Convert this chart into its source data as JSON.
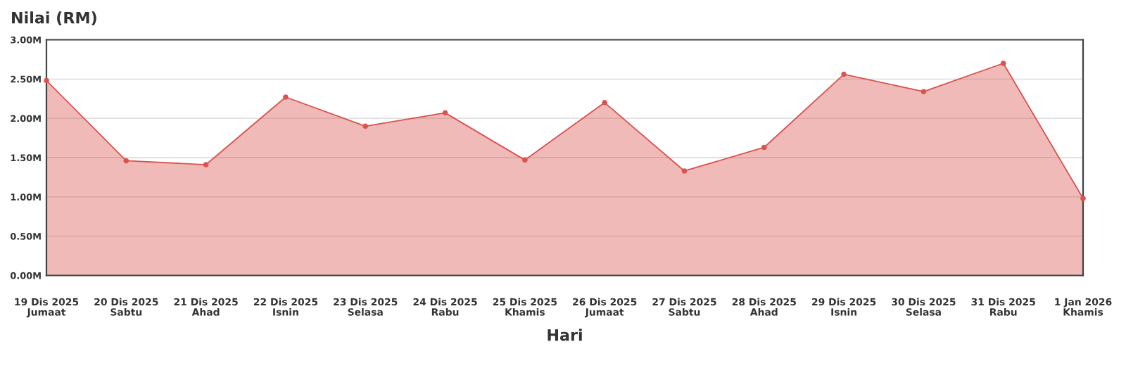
{
  "chart_data": {
    "type": "area",
    "ylabel": "Nilai (RM)",
    "xlabel": "Hari",
    "categories": [
      "19 Dis 2025\nJumaat",
      "20 Dis 2025\nSabtu",
      "21 Dis 2025\nAhad",
      "22 Dis 2025\nIsnin",
      "23 Dis 2025\nSelasa",
      "24 Dis 2025\nRabu",
      "25 Dis 2025\nKhamis",
      "26 Dis 2025\nJumaat",
      "27 Dis 2025\nSabtu",
      "28 Dis 2025\nAhad",
      "29 Dis 2025\nIsnin",
      "30 Dis 2025\nSelasa",
      "31 Dis 2025\nRabu",
      "1 Jan 2026\nKhamis"
    ],
    "series": [
      {
        "color": "#d9534f",
        "values": [
          2480000,
          1460000,
          1410000,
          2270000,
          1900000,
          2070000,
          1470000,
          2200000,
          1330000,
          1630000,
          2560000,
          2340000,
          2700000,
          980000
        ]
      }
    ],
    "ylim": [
      0,
      3000000
    ],
    "yticks": [
      {
        "value": 0,
        "label": "0.00M"
      },
      {
        "value": 500000,
        "label": "0.50M"
      },
      {
        "value": 1000000,
        "label": "1.00M"
      },
      {
        "value": 1500000,
        "label": "1.50M"
      },
      {
        "value": 2000000,
        "label": "2.00M"
      },
      {
        "value": 2500000,
        "label": "2.50M"
      },
      {
        "value": 3000000,
        "label": "3.00M"
      }
    ],
    "grid": "y",
    "marker": "circle",
    "line_style": "solid"
  }
}
